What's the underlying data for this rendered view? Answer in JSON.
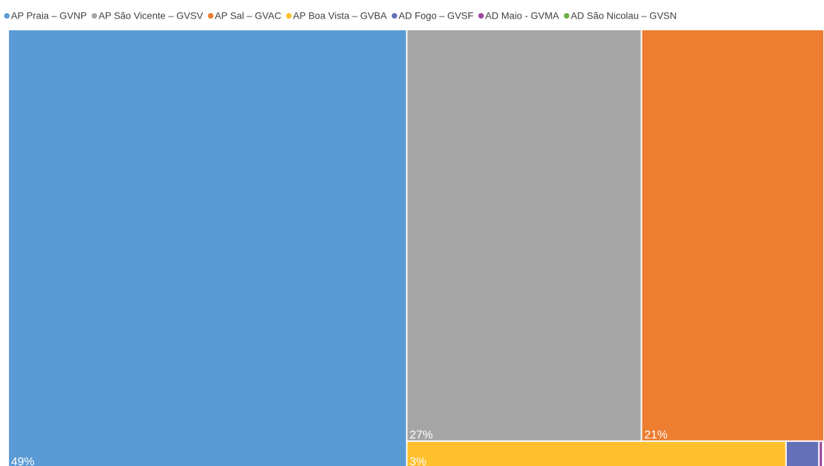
{
  "chart_data": {
    "type": "treemap",
    "categories": [
      "AP Praia – GVNP",
      "AP São Vicente – GVSV",
      "AP Sal – GVAC",
      "AP Boa Vista – GVBA",
      "AD Fogo – GVSF",
      "AD Maio - GVMA",
      "AD São Nicolau – GVSN"
    ],
    "values": [
      49,
      27,
      21,
      3,
      0.26,
      0.03,
      0.01
    ],
    "value_labels": [
      "49%",
      "27%",
      "21%",
      "3%",
      null,
      null,
      null
    ],
    "colors": [
      "#5b9bd5",
      "#a5a5a5",
      "#ed7d31",
      "#ffc02d",
      "#6470b8",
      "#9e48a0",
      "#70ad47"
    ],
    "legend": "top"
  }
}
